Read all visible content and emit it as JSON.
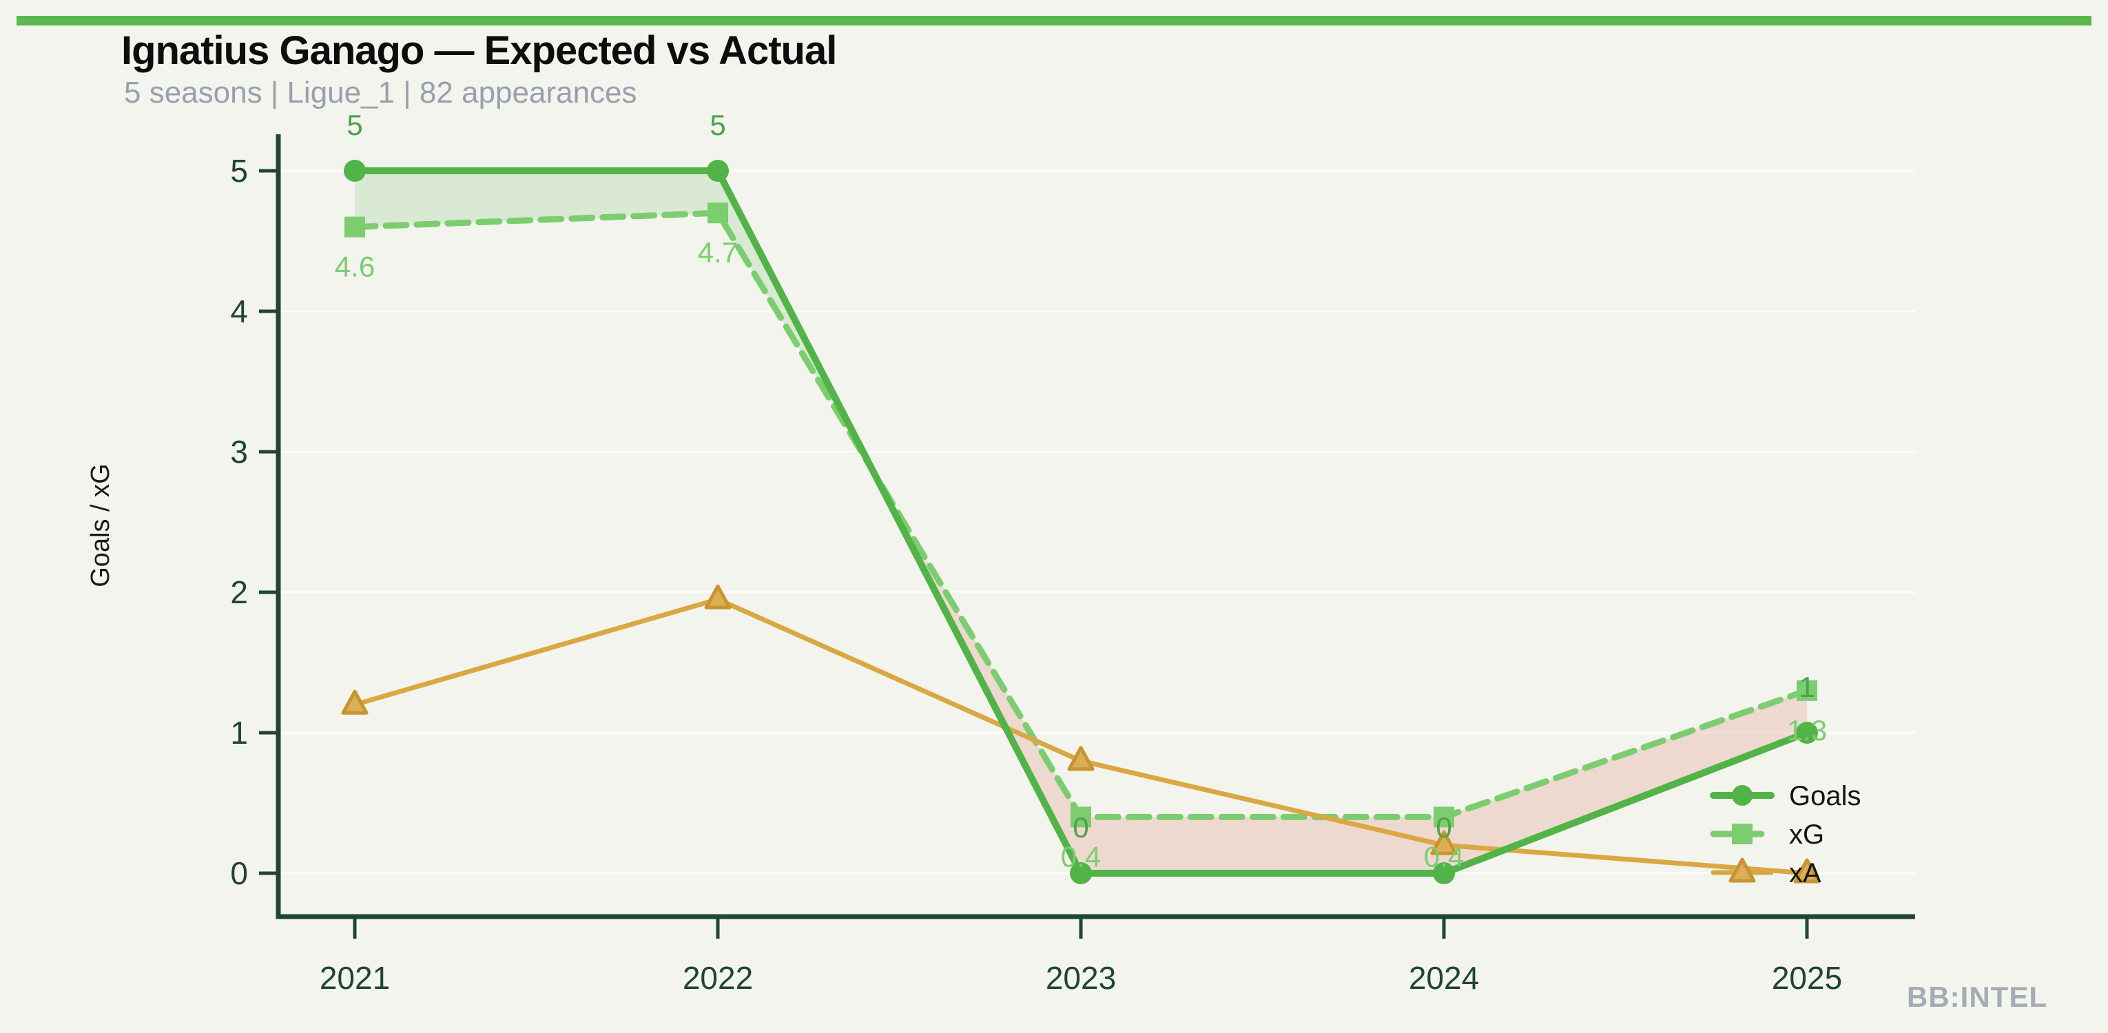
{
  "branding": {
    "watermark": "BB:INTEL"
  },
  "chart_data": {
    "type": "line",
    "title": "Ignatius Ganago — Expected vs Actual",
    "subtitle": "5 seasons | Ligue_1 | 82 appearances",
    "x": [
      2021,
      2022,
      2023,
      2024,
      2025
    ],
    "x_tick_labels": [
      "2021",
      "2022",
      "2023",
      "2024",
      "2025"
    ],
    "xlabel": "",
    "ylabel": "Goals / xG",
    "yticks": [
      0,
      1,
      2,
      3,
      4,
      5
    ],
    "ylim": [
      -0.31,
      5.26
    ],
    "xlim": [
      2020.79,
      2025.3
    ],
    "grid": "horizontal-faint",
    "legend_position": "lower-right-inside",
    "legend_labels": [
      "Goals",
      "xG",
      "xA"
    ],
    "series": [
      {
        "name": "Goals",
        "values": [
          5,
          5,
          0,
          0,
          1
        ],
        "point_labels": [
          "5",
          "5",
          "0",
          "0",
          "1"
        ],
        "color": "#52b348",
        "label_color": "#4da247",
        "marker": "circle",
        "line": "solid",
        "label_side": "above"
      },
      {
        "name": "xG",
        "values": [
          4.6,
          4.7,
          0.4,
          0.4,
          1.3
        ],
        "point_labels": [
          "4.6",
          "4.7",
          "0.4",
          "0.4",
          "1.3"
        ],
        "color": "#7ccd6f",
        "label_color": "#7ccd6f",
        "marker": "square",
        "line": "dashed",
        "label_side": "below"
      },
      {
        "name": "xA",
        "values": [
          1.2,
          1.95,
          0.8,
          0.2,
          0.0
        ],
        "point_labels": [],
        "color": "#d9a843",
        "marker": "triangle",
        "marker_fill": "#dcae55",
        "marker_edge": "#c79530",
        "line": "solid",
        "label_side": "none"
      }
    ],
    "fill_between": {
      "upper": "Goals",
      "lower": "xG",
      "over_color": "rgba(82,179,72,0.16)",
      "under_color": "rgba(214,96,77,0.18)"
    },
    "style": {
      "background": "#f3f4ed",
      "topbar_color": "#5bb84f",
      "axis_color": "#1e4632",
      "tick_label_color": "#1e4632",
      "grid_color": "rgba(255,255,255,0.75)",
      "legend_text_color": "#141414",
      "ylabel_color": "#1a1a1a"
    }
  }
}
